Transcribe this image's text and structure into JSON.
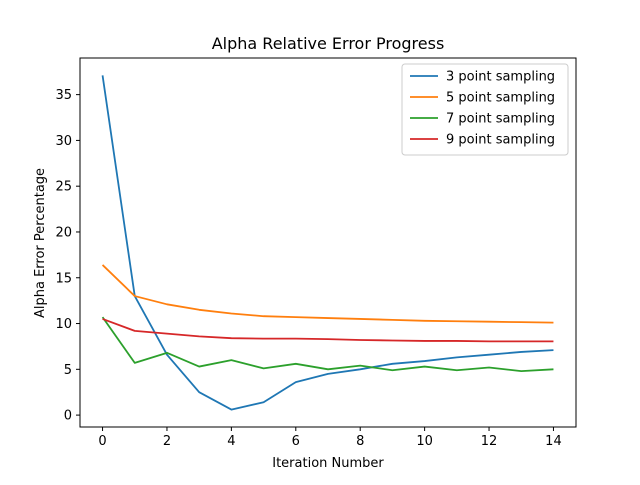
{
  "chart_data": {
    "type": "line",
    "title": "Alpha Relative Error Progress",
    "xlabel": "Iteration Number",
    "ylabel": "Alpha Error Percentage",
    "xlim": [
      -0.7,
      14.7
    ],
    "ylim": [
      -1.3,
      39.0
    ],
    "xticks": [
      0,
      2,
      4,
      6,
      8,
      10,
      12,
      14
    ],
    "yticks": [
      0,
      5,
      10,
      15,
      20,
      25,
      30,
      35
    ],
    "grid": false,
    "legend_position": "top-right",
    "x": [
      0,
      1,
      2,
      3,
      4,
      5,
      6,
      7,
      8,
      9,
      10,
      11,
      12,
      13,
      14
    ],
    "series": [
      {
        "name": "3 point sampling",
        "color": "#1f77b4",
        "values": [
          37.1,
          13.0,
          6.6,
          2.5,
          0.6,
          1.4,
          3.6,
          4.5,
          5.0,
          5.6,
          5.9,
          6.3,
          6.6,
          6.9,
          7.1
        ]
      },
      {
        "name": "5 point sampling",
        "color": "#ff7f0e",
        "values": [
          16.4,
          13.0,
          12.1,
          11.5,
          11.1,
          10.8,
          10.7,
          10.6,
          10.5,
          10.4,
          10.3,
          10.25,
          10.2,
          10.15,
          10.1
        ]
      },
      {
        "name": "7 point sampling",
        "color": "#2ca02c",
        "values": [
          10.7,
          5.7,
          6.8,
          5.3,
          6.0,
          5.1,
          5.6,
          5.0,
          5.4,
          4.9,
          5.3,
          4.9,
          5.2,
          4.8,
          5.0
        ]
      },
      {
        "name": "9 point sampling",
        "color": "#d62728",
        "values": [
          10.5,
          9.2,
          8.9,
          8.6,
          8.4,
          8.35,
          8.35,
          8.3,
          8.2,
          8.15,
          8.1,
          8.1,
          8.05,
          8.05,
          8.05
        ]
      }
    ]
  }
}
